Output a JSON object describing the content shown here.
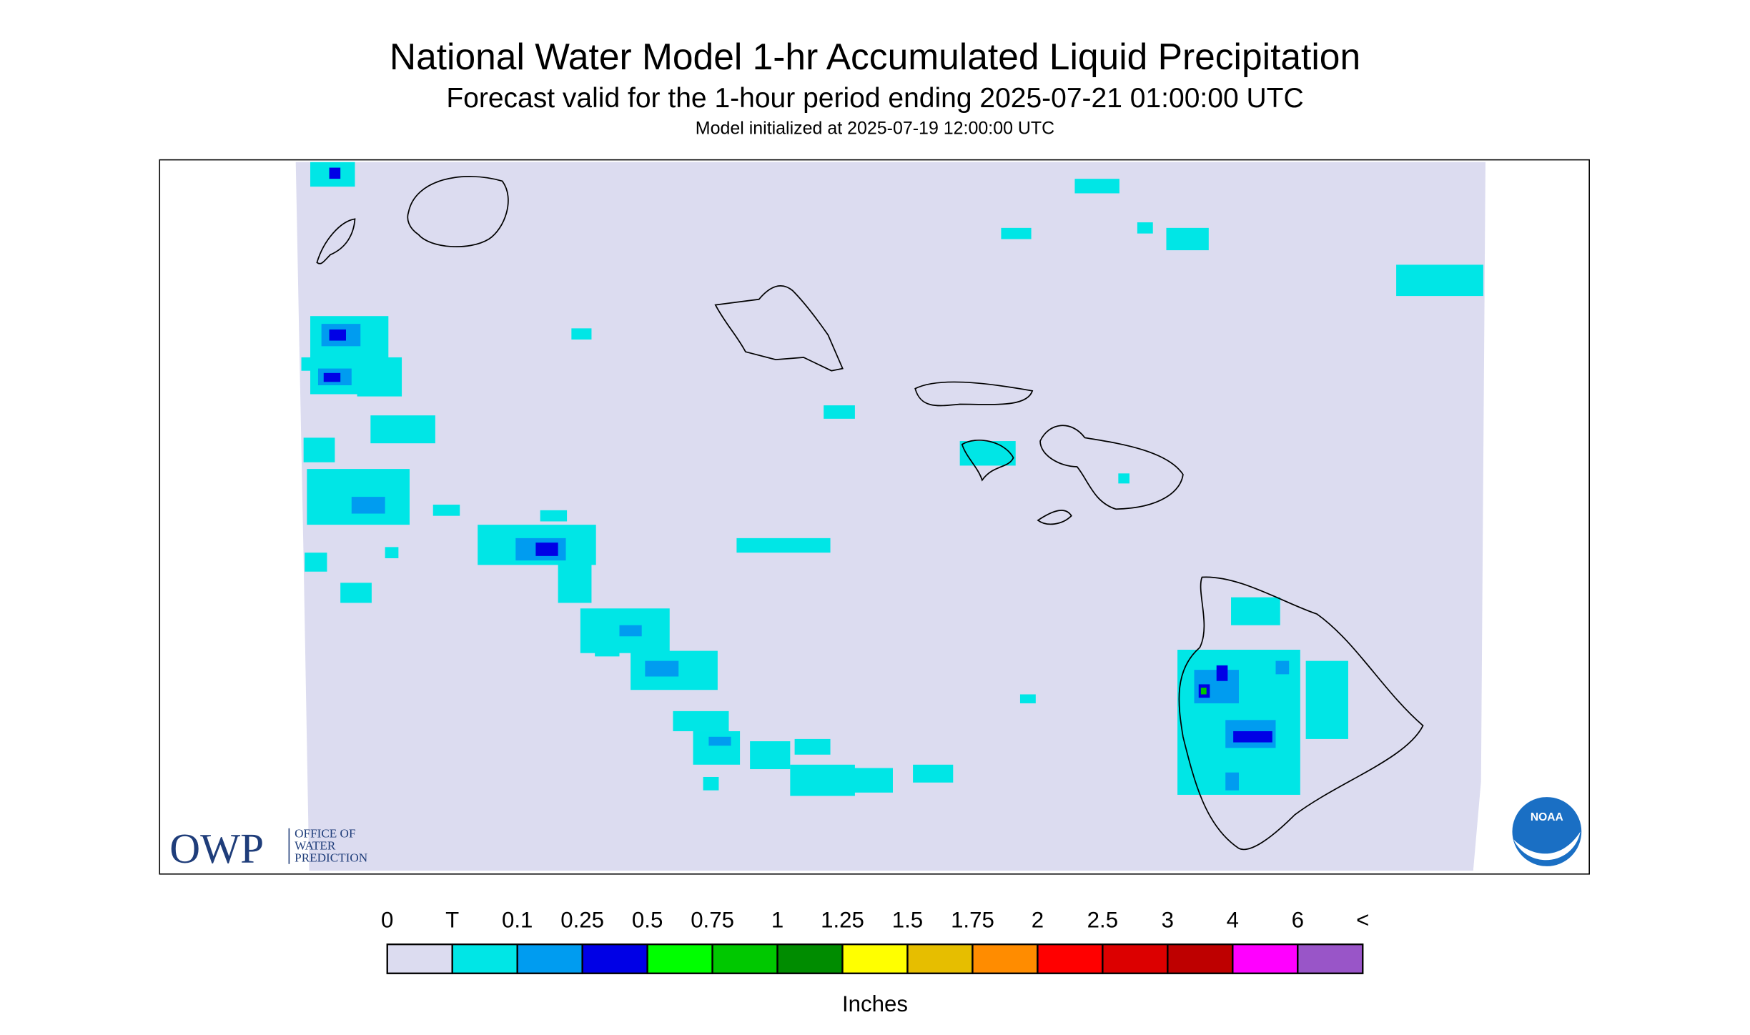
{
  "header": {
    "title": "National Water Model 1-hr Accumulated Liquid Precipitation",
    "subtitle": "Forecast valid for the 1-hour period ending 2025-07-21 01:00:00 UTC",
    "init": "Model initialized at 2025-07-19 12:00:00 UTC"
  },
  "logo": {
    "mark": "OWP",
    "line1": "OFFICE OF",
    "line2": "WATER",
    "line3": "PREDICTION",
    "noaa": "NOAA"
  },
  "legend": {
    "labels": [
      "0",
      "T",
      "0.1",
      "0.25",
      "0.5",
      "0.75",
      "1",
      "1.25",
      "1.5",
      "1.75",
      "2",
      "2.5",
      "3",
      "4",
      "6",
      "<"
    ],
    "colors": [
      "#dcdcf0",
      "#00e6e6",
      "#009cf0",
      "#0000e6",
      "#00ff00",
      "#00c800",
      "#008c00",
      "#ffff00",
      "#e6be00",
      "#ff8c00",
      "#ff0000",
      "#dc0000",
      "#be0000",
      "#ff00ff",
      "#9955c8"
    ],
    "unit": "Inches"
  }
}
